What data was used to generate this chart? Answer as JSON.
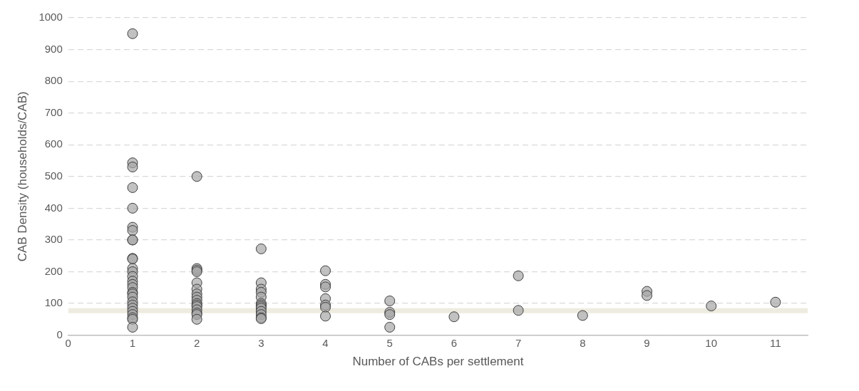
{
  "chart_data": {
    "type": "scatter",
    "xlabel": "Number of CABs per settlement",
    "ylabel": "CAB Density (households/CAB)",
    "x": [
      1,
      1,
      1,
      1,
      1,
      1,
      1,
      1,
      1,
      1,
      1,
      1,
      1,
      1,
      1,
      1,
      1,
      1,
      1,
      1,
      1,
      1,
      1,
      1,
      1,
      1,
      1,
      1,
      2,
      2,
      2,
      2,
      2,
      2,
      2,
      2,
      2,
      2,
      2,
      2,
      2,
      2,
      2,
      2,
      3,
      3,
      3,
      3,
      3,
      3,
      3,
      3,
      3,
      3,
      3,
      3,
      3,
      4,
      4,
      4,
      4,
      4,
      4,
      4,
      5,
      5,
      5,
      5,
      6,
      7,
      7,
      8,
      9,
      9,
      10,
      11
    ],
    "values": [
      950,
      543,
      530,
      465,
      400,
      340,
      330,
      300,
      300,
      242,
      240,
      210,
      200,
      185,
      170,
      160,
      150,
      135,
      130,
      120,
      105,
      95,
      85,
      75,
      65,
      55,
      50,
      25,
      500,
      210,
      205,
      200,
      165,
      145,
      130,
      120,
      110,
      100,
      95,
      90,
      80,
      70,
      65,
      50,
      272,
      165,
      145,
      135,
      120,
      100,
      95,
      90,
      85,
      75,
      65,
      55,
      52,
      203,
      160,
      152,
      115,
      95,
      88,
      60,
      108,
      72,
      65,
      25,
      58,
      187,
      78,
      62,
      138,
      125,
      92,
      104
    ],
    "color": "#a6a6a6",
    "marker": "circle",
    "xlim": [
      0,
      11.5
    ],
    "xticks": [
      0,
      1,
      2,
      3,
      4,
      5,
      6,
      7,
      8,
      9,
      10,
      11
    ],
    "ylim": [
      0,
      1000
    ],
    "yticks": [
      0,
      100,
      200,
      300,
      400,
      500,
      600,
      700,
      800,
      900,
      1000
    ],
    "grid": "y",
    "legend": false,
    "ref_lines": [
      {
        "axis": "y",
        "value": 77,
        "color": "#eeebe0"
      }
    ]
  }
}
